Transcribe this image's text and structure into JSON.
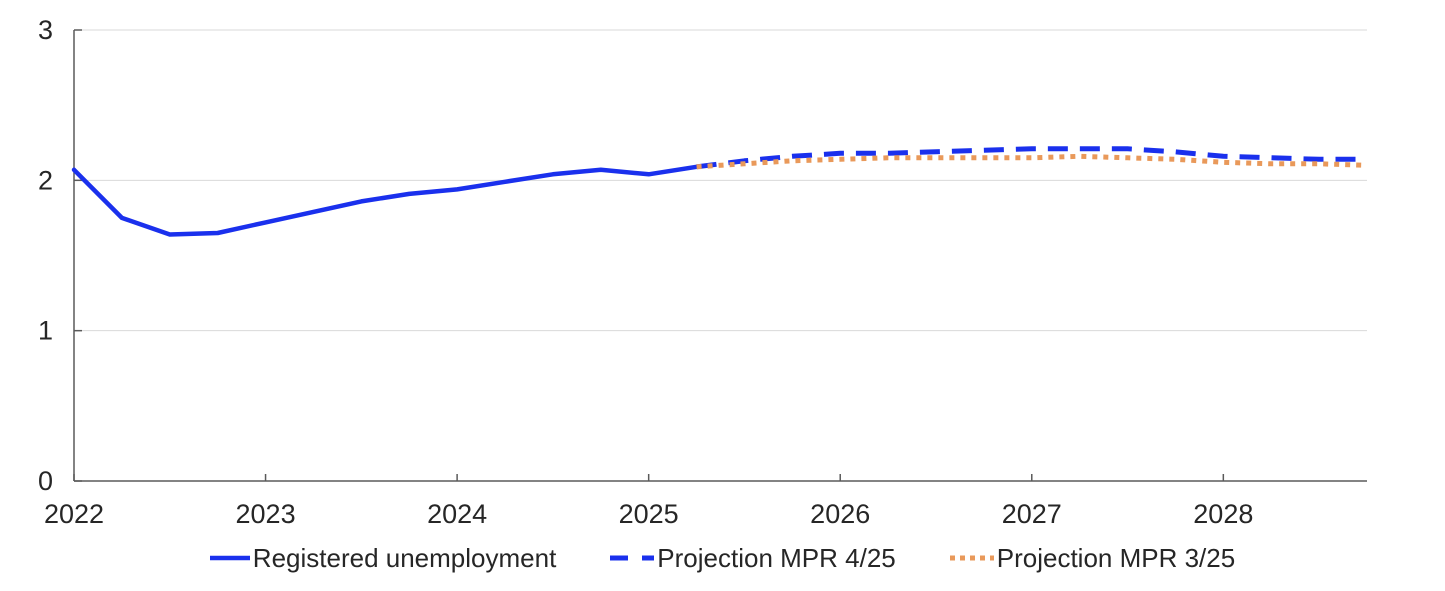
{
  "colors": {
    "blue": "#1a30ed",
    "orange": "#e9995a",
    "axis": "#5a5a5a",
    "grid": "#d9d9d9",
    "text": "#262626",
    "background": "#ffffff"
  },
  "chart_data": {
    "type": "line",
    "title": "",
    "xlabel": "",
    "ylabel": "",
    "xlim": [
      2022,
      2028.75
    ],
    "ylim": [
      0,
      3
    ],
    "x_ticks": [
      2022,
      2023,
      2024,
      2025,
      2026,
      2027,
      2028
    ],
    "y_ticks": [
      0,
      1,
      2,
      3
    ],
    "grid": "horizontal gridlines at y=1,2,3",
    "legend_position": "bottom center",
    "series": [
      {
        "name": "Registered unemployment",
        "style": "solid",
        "color": "#1a30ed",
        "x": [
          2022.0,
          2022.25,
          2022.5,
          2022.75,
          2023.0,
          2023.25,
          2023.5,
          2023.75,
          2024.0,
          2024.25,
          2024.5,
          2024.75,
          2025.0,
          2025.25
        ],
        "values": [
          2.07,
          1.75,
          1.64,
          1.65,
          1.72,
          1.79,
          1.86,
          1.91,
          1.94,
          1.99,
          2.04,
          2.07,
          2.04,
          2.09
        ]
      },
      {
        "name": "Projection MPR 4/25",
        "style": "dashed",
        "color": "#1a30ed",
        "x": [
          2025.25,
          2025.5,
          2025.75,
          2026.0,
          2026.25,
          2026.5,
          2026.75,
          2027.0,
          2027.25,
          2027.5,
          2027.75,
          2028.0,
          2028.25,
          2028.5,
          2028.75
        ],
        "values": [
          2.09,
          2.13,
          2.16,
          2.18,
          2.18,
          2.19,
          2.2,
          2.21,
          2.21,
          2.21,
          2.19,
          2.16,
          2.15,
          2.14,
          2.14
        ]
      },
      {
        "name": "Projection MPR 3/25",
        "style": "dotted",
        "color": "#e9995a",
        "x": [
          2025.25,
          2025.5,
          2025.75,
          2026.0,
          2026.25,
          2026.5,
          2026.75,
          2027.0,
          2027.25,
          2027.5,
          2027.75,
          2028.0,
          2028.25,
          2028.5,
          2028.75
        ],
        "values": [
          2.09,
          2.11,
          2.13,
          2.14,
          2.15,
          2.15,
          2.15,
          2.15,
          2.16,
          2.15,
          2.14,
          2.12,
          2.11,
          2.11,
          2.1
        ]
      }
    ]
  }
}
